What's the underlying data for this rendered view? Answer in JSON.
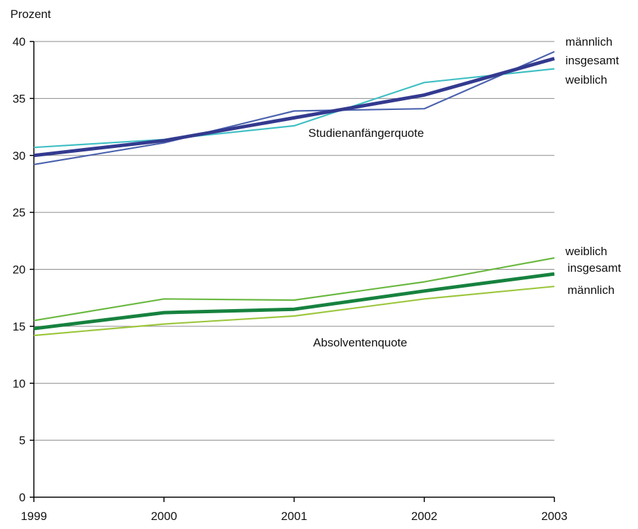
{
  "chart_data": {
    "type": "line",
    "y_unit_label": "Prozent",
    "x": [
      "1999",
      "2000",
      "2001",
      "2002",
      "2003"
    ],
    "ylim": [
      0,
      40
    ],
    "yticks": [
      0,
      5,
      10,
      15,
      20,
      25,
      30,
      35,
      40
    ],
    "grid": "horizontal",
    "legend": "end-of-line labels (right side)",
    "groups": [
      {
        "label": "Studienanfängerquote"
      },
      {
        "label": "Absolventenquote"
      }
    ],
    "series": [
      {
        "group": "Studienanfängerquote",
        "name": "männlich",
        "color": "#4a62ad",
        "values": [
          29.2,
          31.1,
          33.9,
          34.1,
          39.1
        ]
      },
      {
        "group": "Studienanfängerquote",
        "name": "insgesamt",
        "color": "#333a8f",
        "values": [
          30.0,
          31.3,
          33.3,
          35.3,
          38.5
        ]
      },
      {
        "group": "Studienanfängerquote",
        "name": "weiblich",
        "color": "#3fbfc4",
        "values": [
          30.7,
          31.4,
          32.6,
          36.4,
          37.6
        ]
      },
      {
        "group": "Absolventenquote",
        "name": "weiblich",
        "color": "#6ab840",
        "values": [
          15.5,
          17.4,
          17.3,
          18.9,
          21.0
        ]
      },
      {
        "group": "Absolventenquote",
        "name": "insgesamt",
        "color": "#16823e",
        "values": [
          14.8,
          16.2,
          16.5,
          18.1,
          19.6
        ]
      },
      {
        "group": "Absolventenquote",
        "name": "männlich",
        "color": "#9cc63c",
        "values": [
          14.2,
          15.2,
          15.9,
          17.4,
          18.5
        ]
      }
    ]
  }
}
